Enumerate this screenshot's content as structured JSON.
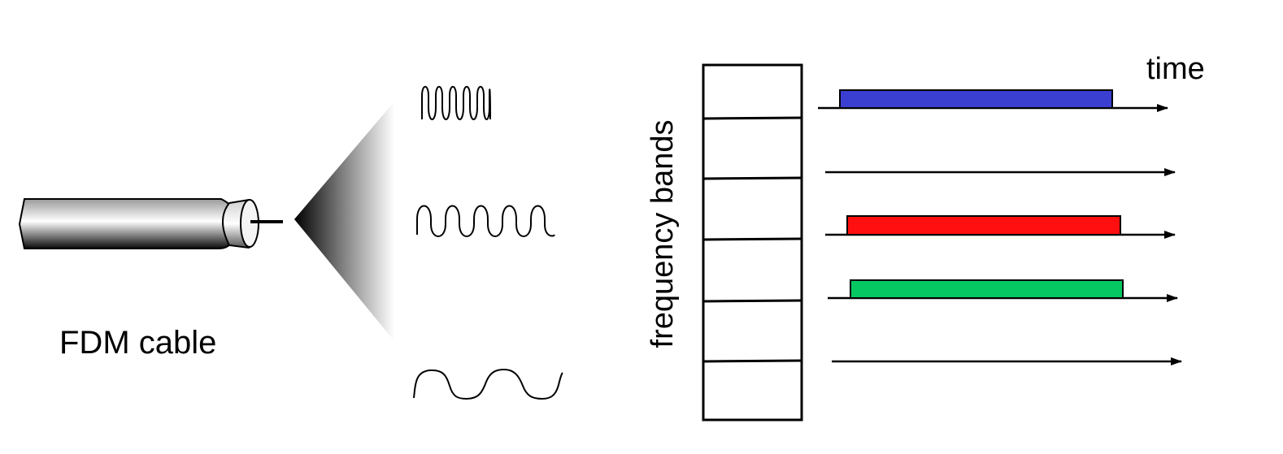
{
  "labels": {
    "cable": "FDM cable",
    "time_axis": "time",
    "frequency_axis": "frequency bands"
  },
  "icons": {
    "cable": "coax-cable-icon",
    "waves": [
      "high-frequency-wave-icon",
      "medium-frequency-wave-icon",
      "low-frequency-wave-icon"
    ]
  },
  "frequency_bands": {
    "count": 6,
    "rows": [
      {
        "occupied": true,
        "color": "#3a3fd1"
      },
      {
        "occupied": false,
        "color": null
      },
      {
        "occupied": true,
        "color": "#ff0f0f"
      },
      {
        "occupied": true,
        "color": "#05c862"
      },
      {
        "occupied": false,
        "color": null
      },
      {
        "occupied": false,
        "color": null
      }
    ]
  }
}
